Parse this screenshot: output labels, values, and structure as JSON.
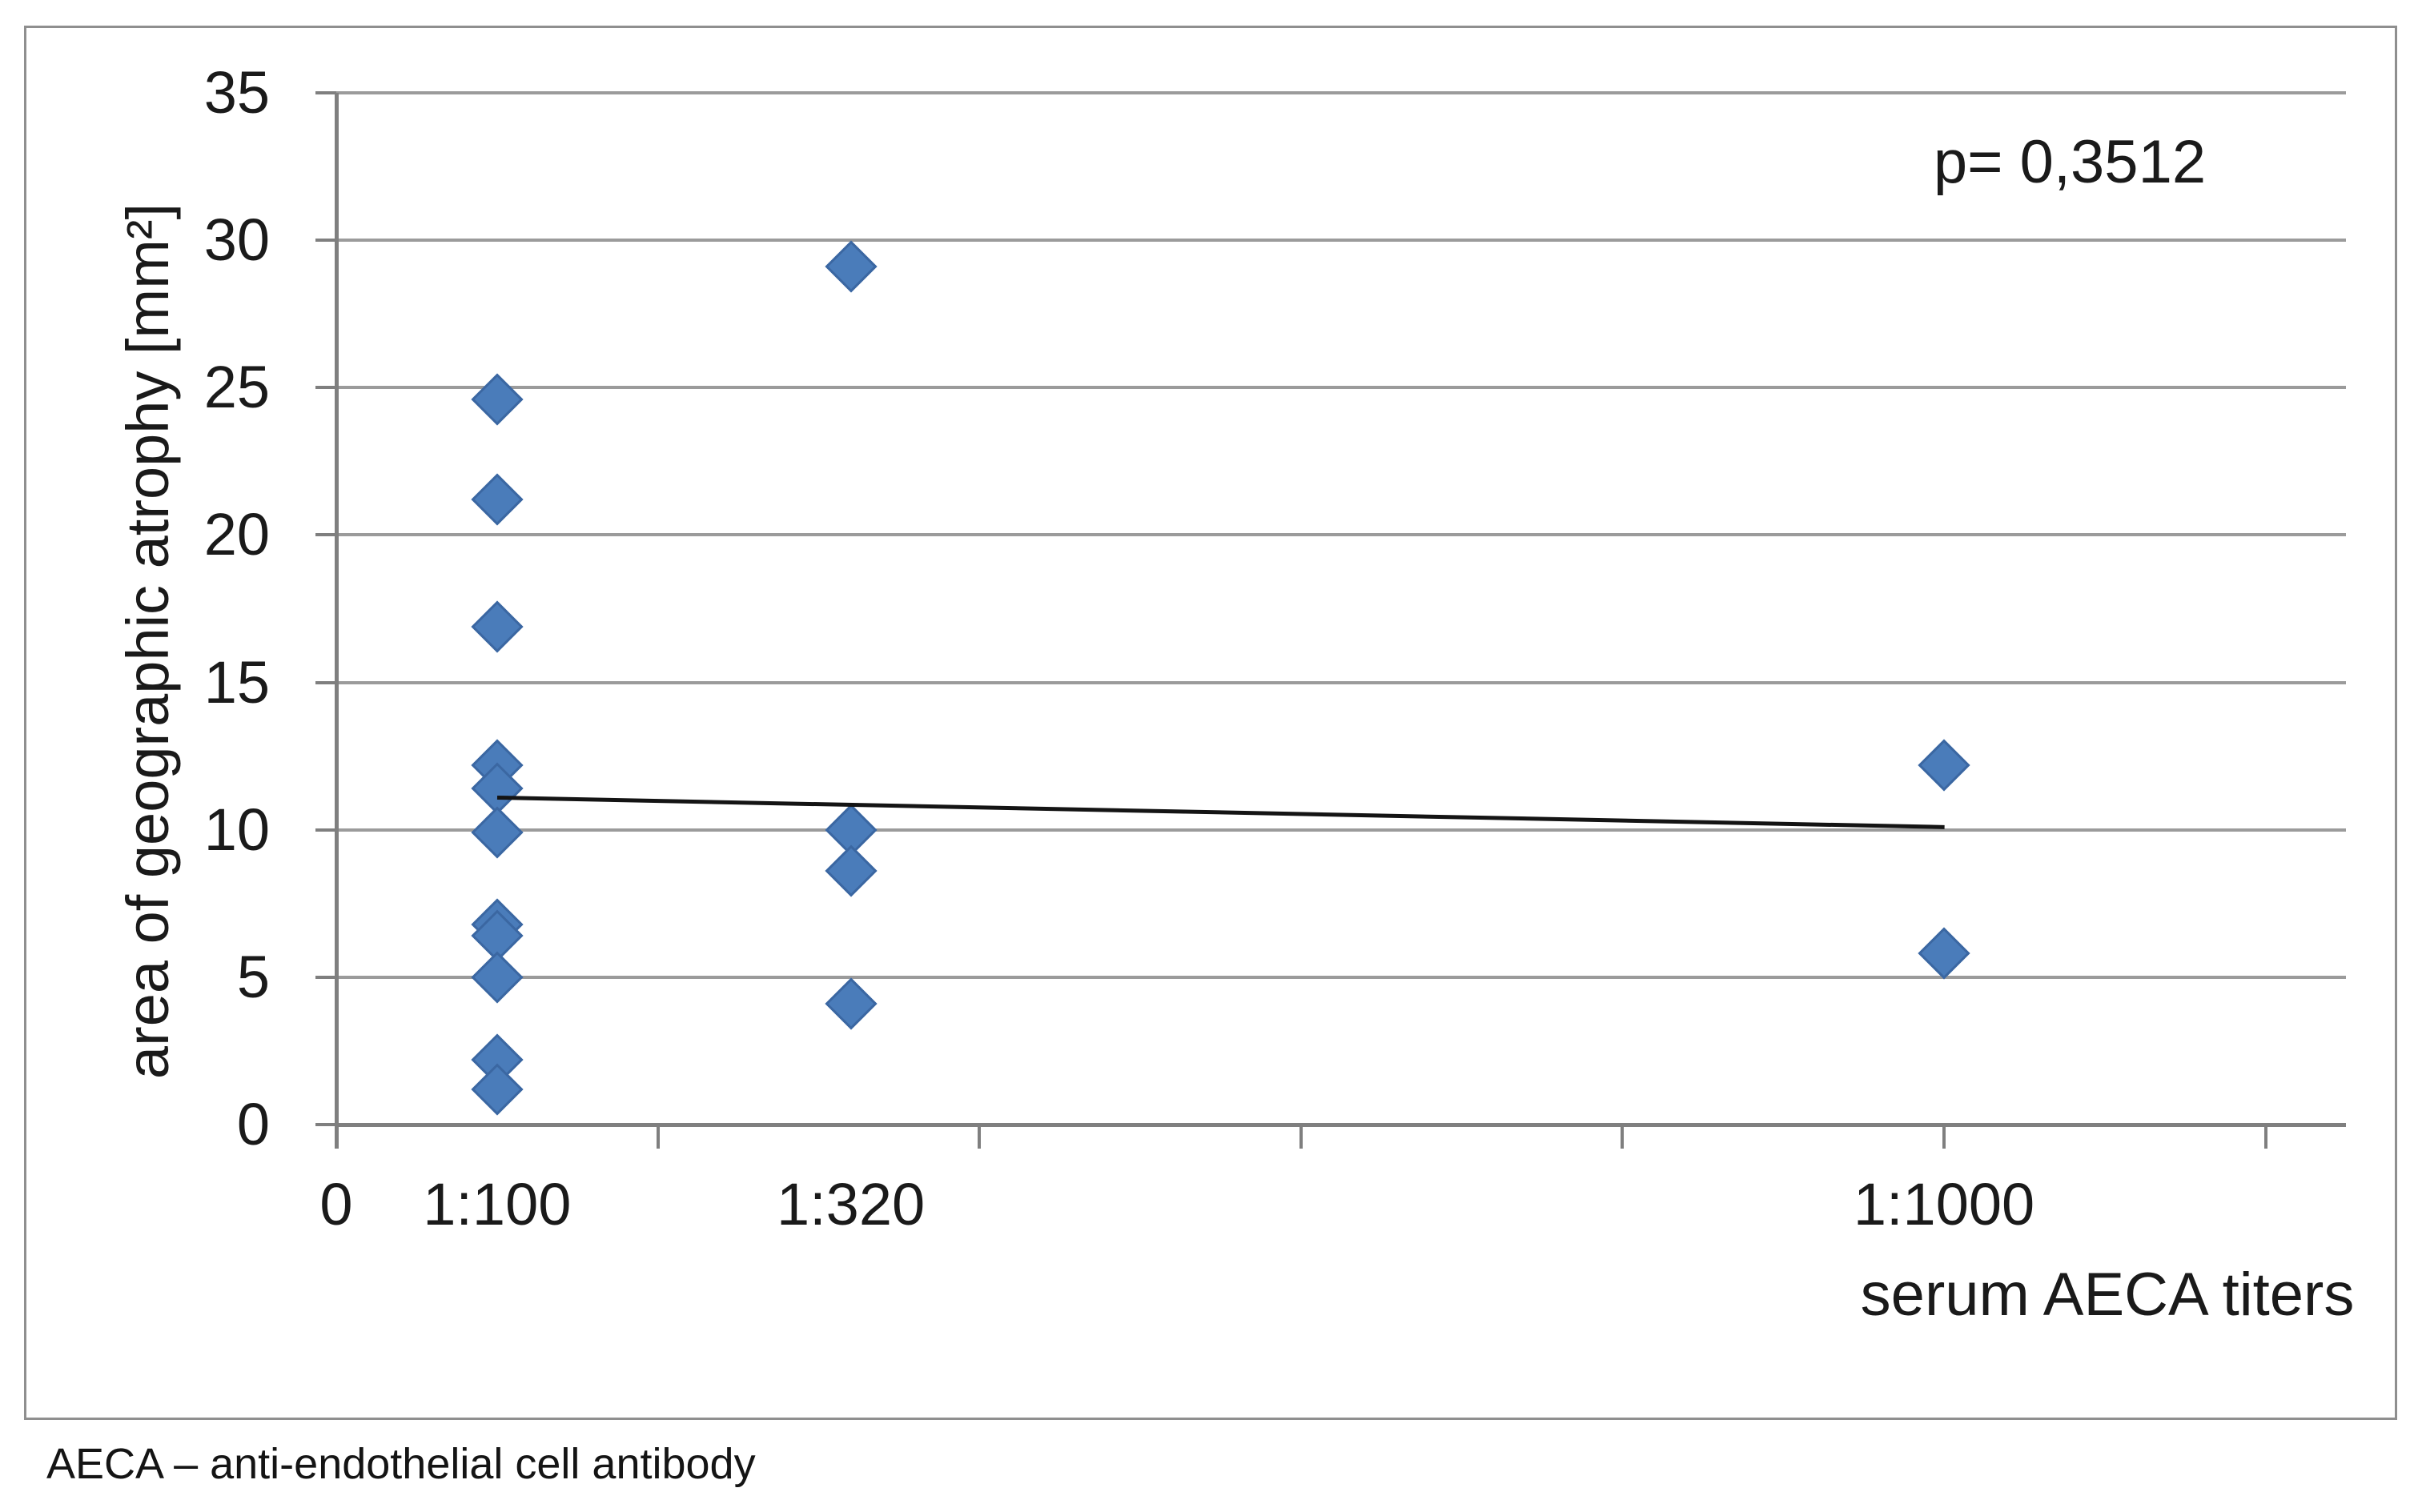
{
  "figure": {
    "caption": "AECA – anti-endothelial cell antibody",
    "colors": {
      "marker_fill": "#4a7cba",
      "marker_edge": "#3b67a2",
      "gridline": "#9b9b9b",
      "axis": "#7f7f7f",
      "trendline": "#141414",
      "frame_border": "#8f8f8f",
      "text": "#1a1a1a",
      "background": "#ffffff"
    }
  },
  "chart_data": {
    "type": "scatter",
    "title": "",
    "xlabel": "serum AECA titers",
    "ylabel": "area of geographic atrophy [mm²]",
    "annotation": "p= 0,3512",
    "marker": "diamond",
    "legend": "none",
    "grid": "horizontal",
    "x_axis": {
      "lim": [
        0,
        1250
      ],
      "tick_step": 200,
      "tick_values": [
        0,
        200,
        400,
        600,
        800,
        1000,
        1200
      ],
      "labels": [
        {
          "value": 0,
          "label": "0"
        },
        {
          "value": 100,
          "label": "1:100"
        },
        {
          "value": 320,
          "label": "1:320"
        },
        {
          "value": 1000,
          "label": "1:1000"
        }
      ]
    },
    "y_axis": {
      "lim": [
        0,
        35
      ],
      "tick_step": 5,
      "ticks": [
        {
          "value": 0,
          "label": "0"
        },
        {
          "value": 5,
          "label": "5"
        },
        {
          "value": 10,
          "label": "10"
        },
        {
          "value": 15,
          "label": "15"
        },
        {
          "value": 20,
          "label": "20"
        },
        {
          "value": 25,
          "label": "25"
        },
        {
          "value": 30,
          "label": "30"
        },
        {
          "value": 35,
          "label": "35"
        }
      ]
    },
    "series": [
      {
        "name": "",
        "marker": "diamond",
        "color": "#4a7cba",
        "points": [
          {
            "x": 100,
            "y": 24.6
          },
          {
            "x": 100,
            "y": 21.2
          },
          {
            "x": 100,
            "y": 16.9
          },
          {
            "x": 100,
            "y": 12.2
          },
          {
            "x": 100,
            "y": 11.4
          },
          {
            "x": 100,
            "y": 9.9
          },
          {
            "x": 100,
            "y": 6.8
          },
          {
            "x": 100,
            "y": 6.4
          },
          {
            "x": 100,
            "y": 5.0
          },
          {
            "x": 100,
            "y": 2.2
          },
          {
            "x": 100,
            "y": 1.2
          },
          {
            "x": 320,
            "y": 29.1
          },
          {
            "x": 320,
            "y": 10.0
          },
          {
            "x": 320,
            "y": 8.6
          },
          {
            "x": 320,
            "y": 4.1
          },
          {
            "x": 1000,
            "y": 12.2
          },
          {
            "x": 1000,
            "y": 5.8
          }
        ]
      }
    ],
    "trendline": {
      "points": [
        {
          "x": 100,
          "y": 11.1
        },
        {
          "x": 1000,
          "y": 10.1
        }
      ]
    }
  }
}
